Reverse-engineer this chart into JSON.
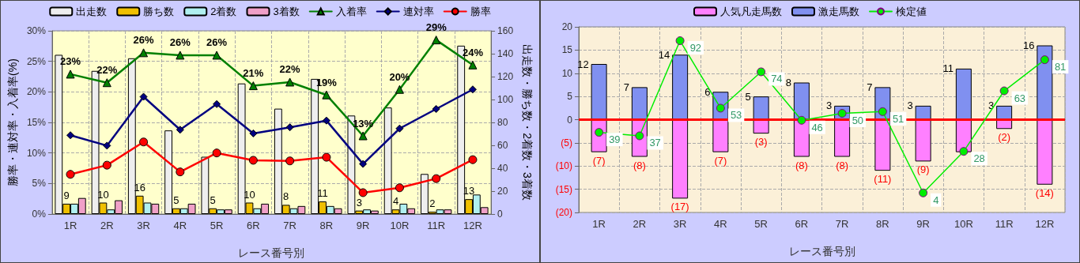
{
  "chart_data": [
    {
      "type": "bar",
      "xlabel": "レース番号別",
      "ylabel": "勝率・連対率・入着率(%)",
      "y2label": "出走数・勝ち数・2着数・3着数",
      "categories": [
        "1R",
        "2R",
        "3R",
        "4R",
        "5R",
        "6R",
        "7R",
        "8R",
        "9R",
        "10R",
        "11R",
        "12R"
      ],
      "series": [
        {
          "name": "出走数",
          "color": "#eeeeee",
          "axis": "y2",
          "values": [
            139,
            125,
            136,
            73,
            50,
            114,
            92,
            118,
            86,
            93,
            35,
            147
          ]
        },
        {
          "name": "勝ち数",
          "color": "#f0c000",
          "axis": "y2",
          "values": [
            9,
            10,
            16,
            5,
            5,
            10,
            8,
            11,
            3,
            4,
            2,
            13
          ],
          "value_labels": [
            "9",
            "10",
            "16",
            "5",
            "5",
            "10",
            "8",
            "11",
            "3",
            "4",
            "2",
            "13"
          ]
        },
        {
          "name": "2着数",
          "color": "#b0f0f0",
          "axis": "y2",
          "values": [
            9,
            4,
            10,
            5,
            4,
            5,
            5,
            7,
            4,
            9,
            4,
            17
          ]
        },
        {
          "name": "3着数",
          "color": "#f0a0c8",
          "axis": "y2",
          "values": [
            14,
            12,
            9,
            9,
            4,
            9,
            7,
            5,
            3,
            5,
            4,
            6
          ]
        },
        {
          "name": "入着率",
          "type": "line",
          "color": "#008000",
          "marker": "triangle",
          "axis": "y",
          "values": [
            22.9,
            21.5,
            26.4,
            26.0,
            26.0,
            21.0,
            21.6,
            19.5,
            12.8,
            20.4,
            28.5,
            24.4
          ],
          "value_labels": [
            "23%",
            "22%",
            "26%",
            "26%",
            "26%",
            "21%",
            "22%",
            "19%",
            "13%",
            "20%",
            "29%",
            "24%"
          ]
        },
        {
          "name": "連対率",
          "type": "line",
          "color": "#000080",
          "marker": "diamond",
          "axis": "y",
          "values": [
            12.9,
            11.2,
            19.2,
            13.8,
            18.0,
            13.2,
            14.2,
            15.3,
            8.2,
            14.0,
            17.2,
            20.4
          ]
        },
        {
          "name": "勝率",
          "type": "line",
          "color": "#ff0000",
          "marker": "circle",
          "axis": "y",
          "values": [
            6.5,
            8.0,
            11.8,
            6.9,
            10.0,
            8.8,
            8.7,
            9.3,
            3.5,
            4.3,
            5.8,
            8.9
          ]
        }
      ],
      "ylim": [
        0,
        30
      ],
      "yticks": [
        {
          "value": 0,
          "label": "0%"
        },
        {
          "value": 5,
          "label": "5%"
        },
        {
          "value": 10,
          "label": "10%"
        },
        {
          "value": 15,
          "label": "15%"
        },
        {
          "value": 20,
          "label": "20%"
        },
        {
          "value": 25,
          "label": "25%"
        },
        {
          "value": 30,
          "label": "30%"
        }
      ],
      "y2lim": [
        0,
        160
      ],
      "y2ticks": [
        0,
        20,
        40,
        60,
        80,
        100,
        120,
        140,
        160
      ],
      "grid": true,
      "legend": "top"
    },
    {
      "type": "bar",
      "xlabel": "レース番号別",
      "stacked": true,
      "categories": [
        "1R",
        "2R",
        "3R",
        "4R",
        "5R",
        "6R",
        "7R",
        "8R",
        "9R",
        "10R",
        "11R",
        "12R"
      ],
      "series": [
        {
          "name": "人気凡走馬数",
          "color": "#ff80ff",
          "axis": "y",
          "values": [
            -7,
            -8,
            -17,
            -7,
            -3,
            -8,
            -8,
            -11,
            -9,
            -7,
            -2,
            -14
          ],
          "value_labels": [
            "(7)",
            "(8)",
            "(17)",
            "(7)",
            "(3)",
            "(8)",
            "(8)",
            "(11)",
            "(9)",
            null,
            "(2)",
            "(14)"
          ]
        },
        {
          "name": "激走馬数",
          "color": "#8090f0",
          "axis": "y",
          "values": [
            12,
            7,
            14,
            6,
            5,
            8,
            3,
            7,
            3,
            11,
            3,
            16
          ],
          "value_labels": [
            "12",
            "7",
            "14",
            "6",
            "5",
            "8",
            "3",
            "7",
            "3",
            "11",
            "3",
            "16"
          ]
        },
        {
          "name": "検定値",
          "type": "line",
          "color": "#00ee00",
          "marker": "circle",
          "axis": "y2",
          "values": [
            39,
            37,
            92,
            53,
            74,
            46,
            50,
            51,
            4,
            28,
            63,
            81
          ],
          "value_labels": [
            "39",
            "37",
            "92",
            "53",
            "74",
            "46",
            "50",
            "51",
            "4",
            "28",
            "63",
            "81"
          ]
        }
      ],
      "ylim": [
        -20,
        20
      ],
      "yticks": [
        {
          "value": -20,
          "label": "(20)"
        },
        {
          "value": -15,
          "label": "(15)"
        },
        {
          "value": -10,
          "label": "(10)"
        },
        {
          "value": -5,
          "label": "(5)"
        },
        0,
        5,
        10,
        15,
        20
      ],
      "y2lim": [
        -7.3,
        100
      ],
      "ref_lines": [
        {
          "axis": "y",
          "value": 0,
          "color": "#ff0000"
        }
      ],
      "grid": true,
      "legend": "top"
    }
  ]
}
